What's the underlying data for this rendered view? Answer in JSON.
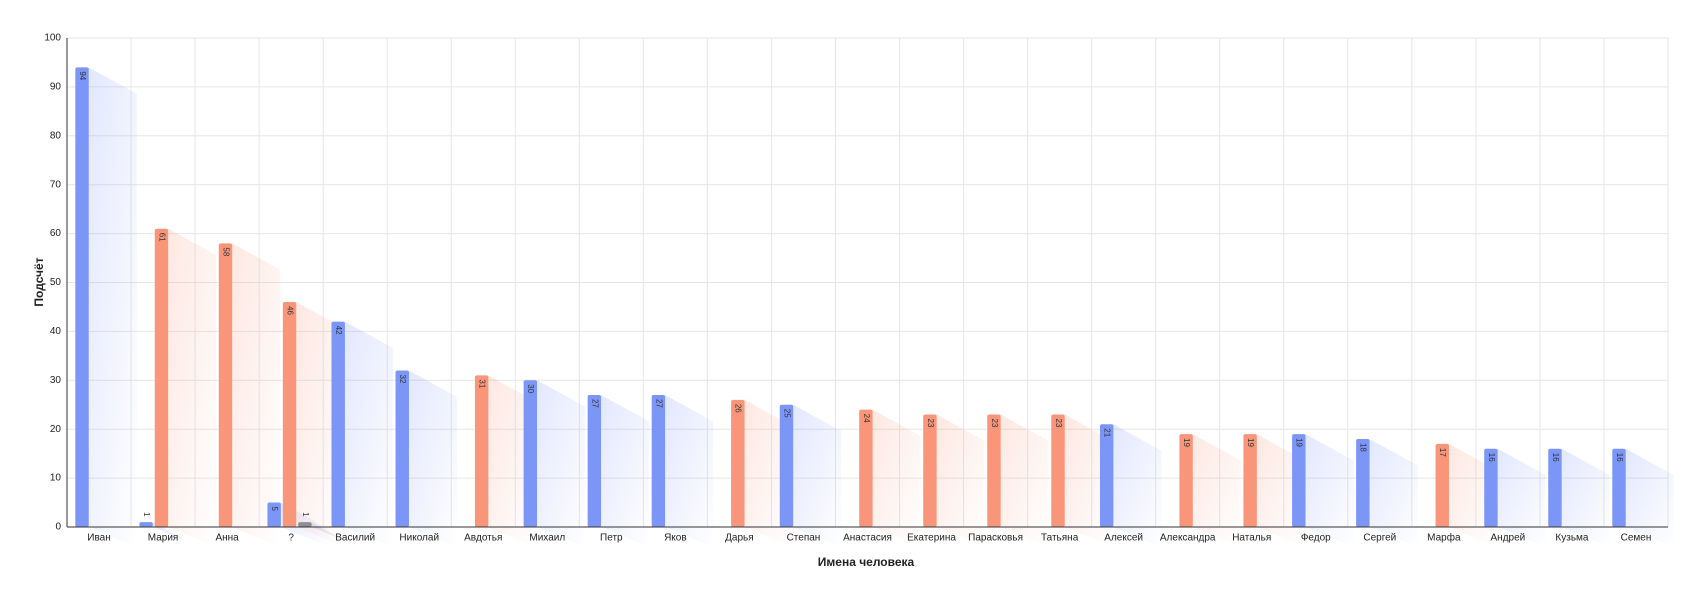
{
  "chart_data": {
    "type": "bar",
    "x_label": "Имена человека",
    "y_label": "Подсчёт",
    "categories": [
      "Иван",
      "Мария",
      "Анна",
      "?",
      "Василий",
      "Николай",
      "Авдотья",
      "Михаил",
      "Петр",
      "Яков",
      "Дарья",
      "Степан",
      "Анастасия",
      "Екатерина",
      "Парасковья",
      "Татьяна",
      "Алексей",
      "Александра",
      "Наталья",
      "Федор",
      "Сергей",
      "Марфа",
      "Андрей",
      "Кузьма",
      "Семен"
    ],
    "series": [
      {
        "color": "#7b96f7",
        "values": [
          94,
          1,
          null,
          5,
          42,
          32,
          null,
          30,
          27,
          27,
          null,
          25,
          null,
          null,
          null,
          null,
          21,
          null,
          null,
          19,
          18,
          null,
          16,
          16,
          16
        ]
      },
      {
        "color": "#f99679",
        "values": [
          null,
          61,
          58,
          46,
          null,
          null,
          31,
          null,
          null,
          null,
          26,
          null,
          24,
          23,
          23,
          23,
          null,
          19,
          19,
          null,
          null,
          17,
          null,
          null,
          null
        ]
      },
      {
        "color": "#8d8d96",
        "values": [
          null,
          null,
          null,
          1,
          null,
          null,
          null,
          null,
          null,
          null,
          null,
          null,
          null,
          null,
          null,
          null,
          null,
          null,
          null,
          null,
          null,
          null,
          null,
          null,
          null
        ]
      }
    ],
    "ylim": [
      0,
      100
    ],
    "yticks": [
      0,
      10,
      20,
      30,
      40,
      50,
      60,
      70,
      80,
      90,
      100
    ],
    "grid": true
  }
}
